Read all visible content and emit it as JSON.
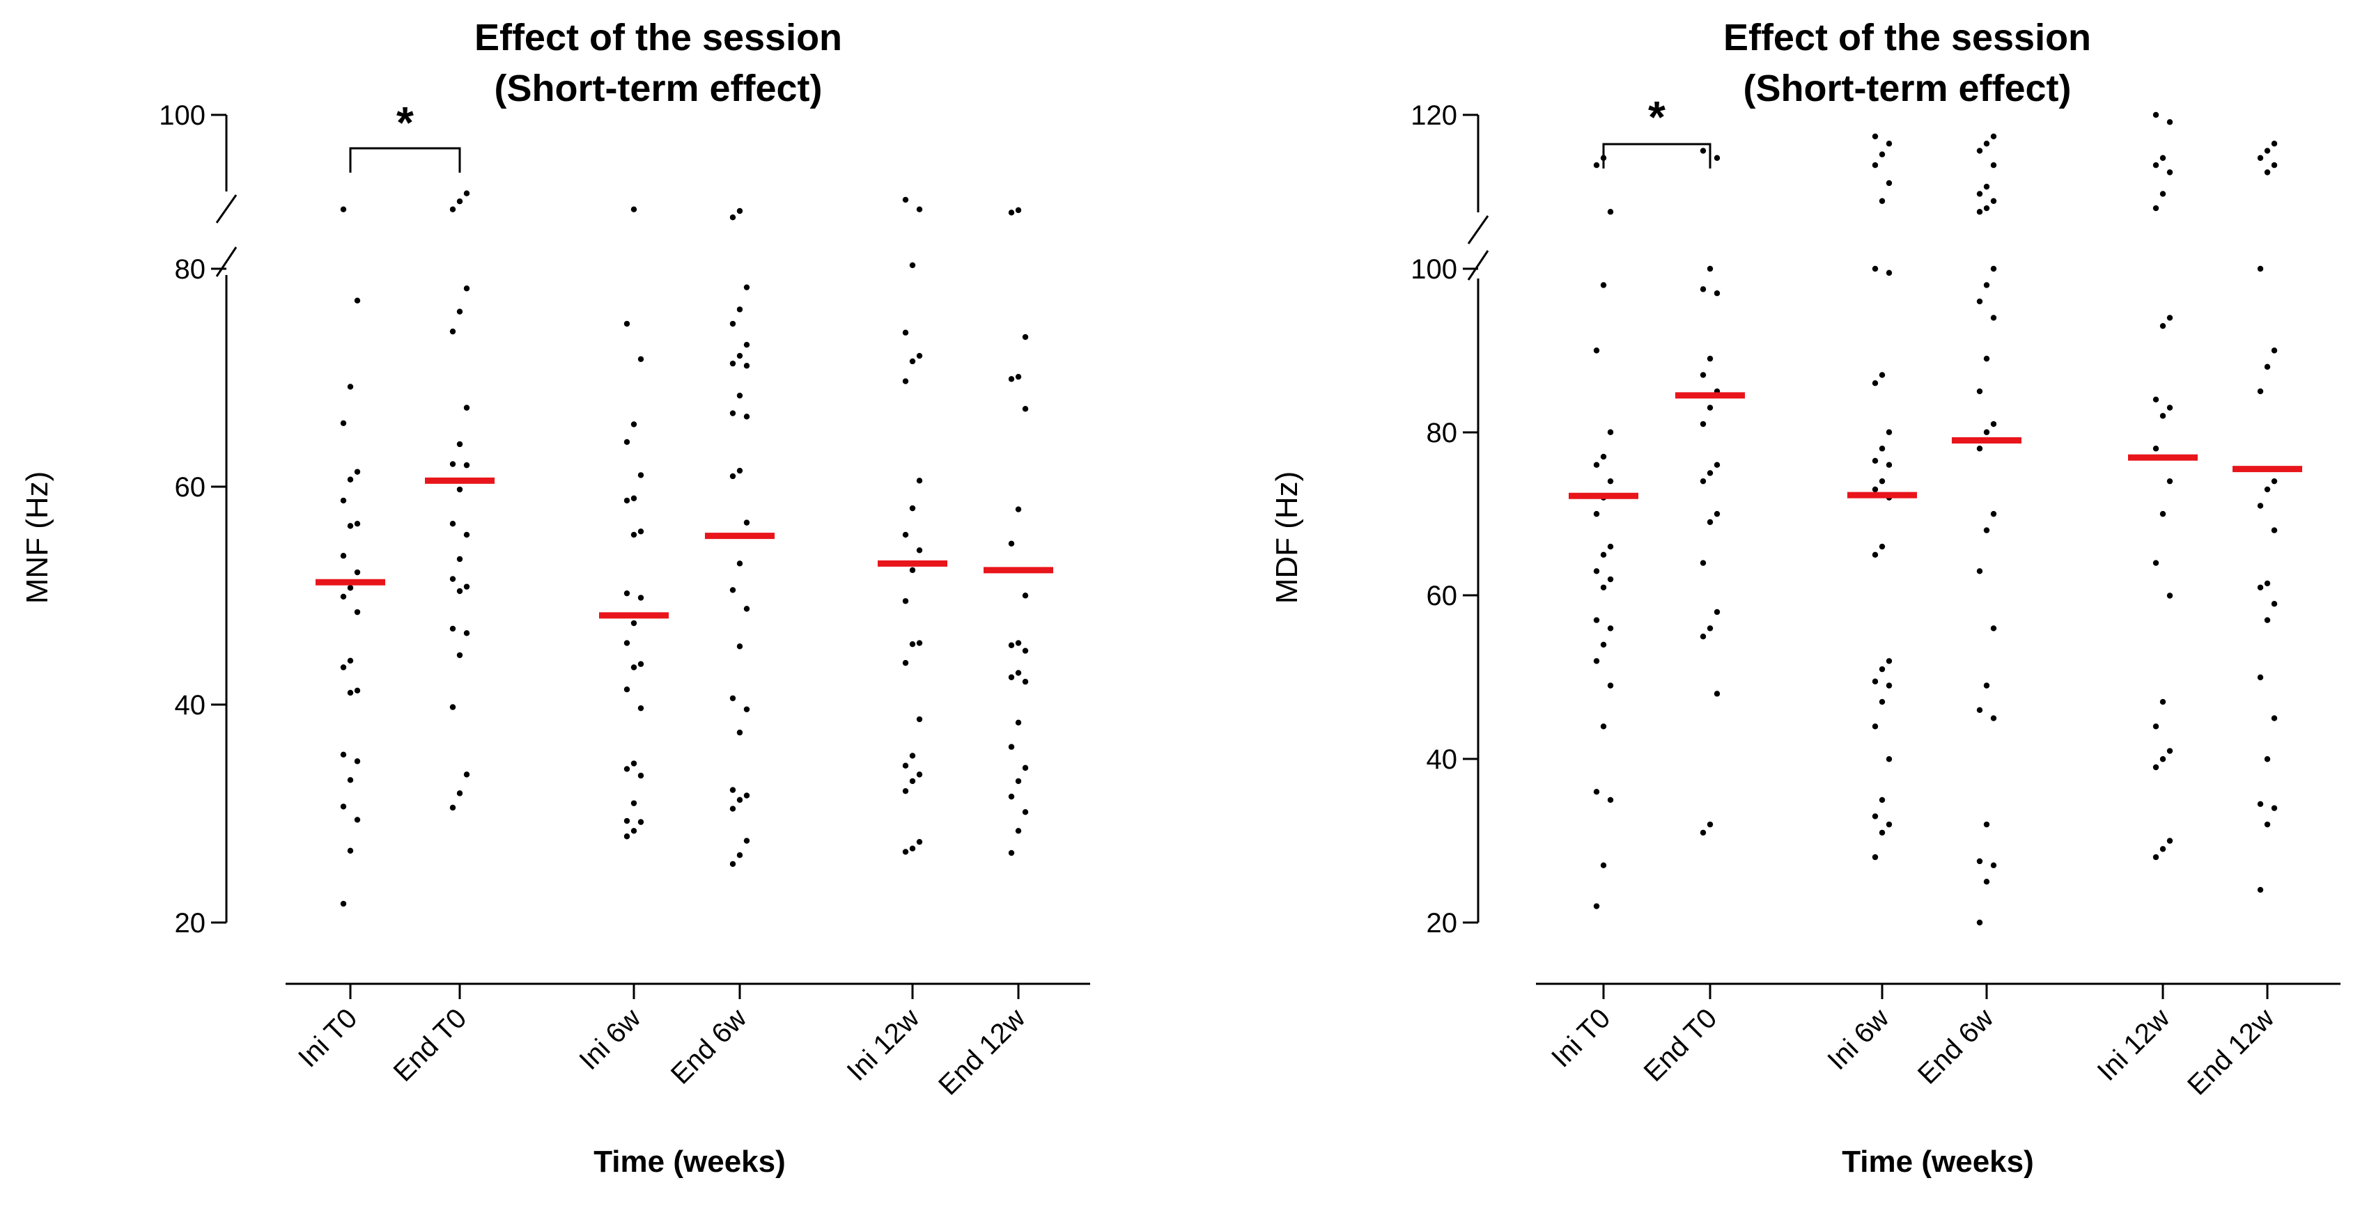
{
  "chart_data": [
    {
      "type": "scatter",
      "title": [
        "Effect of the session",
        "(Short-term effect)"
      ],
      "xlabel": "Time (weeks)",
      "ylabel": "MNF (Hz)",
      "categories": [
        "Ini T0",
        "End T0",
        "Ini 6w",
        "End 6w",
        "Ini 12w",
        "End 12w"
      ],
      "yticks": [
        "20",
        "40",
        "60",
        "80",
        "100"
      ],
      "ylim": [
        20,
        100
      ],
      "axis_break": [
        80,
        90
      ],
      "significance": {
        "from": "Ini T0",
        "to": "End T0",
        "label": "*"
      },
      "medians": [
        50.8,
        60.0,
        47.8,
        55.0,
        52.5,
        51.9
      ],
      "median_color": "#e8151b",
      "points": [
        [
          21.7,
          26.5,
          29.3,
          30.5,
          32.9,
          34.6,
          35.2,
          40.8,
          41.0,
          43.1,
          43.7,
          48.1,
          49.5,
          50.3,
          51.7,
          53.2,
          55.9,
          56.1,
          58.2,
          60.1,
          60.8,
          65.2,
          68.5,
          76.3,
          88.2
        ],
        [
          30.4,
          31.7,
          33.4,
          39.5,
          44.2,
          46.2,
          46.6,
          50.0,
          50.4,
          51.1,
          52.9,
          55.1,
          56.1,
          59.2,
          61.4,
          61.5,
          63.3,
          66.6,
          73.5,
          75.3,
          77.4,
          88.2,
          89.2,
          90.2
        ],
        [
          27.8,
          28.3,
          29.1,
          29.2,
          30.8,
          33.3,
          33.9,
          34.4,
          39.4,
          41.1,
          43.1,
          43.4,
          45.3,
          47.1,
          49.4,
          49.8,
          55.1,
          55.4,
          58.2,
          58.4,
          60.5,
          63.5,
          65.1,
          71.0,
          74.2,
          88.2
        ],
        [
          25.3,
          26.1,
          27.4,
          30.3,
          31.1,
          31.5,
          32.0,
          37.2,
          39.3,
          40.3,
          45.0,
          48.4,
          50.1,
          52.5,
          56.2,
          60.4,
          60.9,
          65.8,
          66.1,
          67.7,
          70.4,
          70.6,
          71.3,
          72.3,
          74.2,
          75.5,
          77.5,
          87.2,
          88.0
        ],
        [
          26.4,
          26.7,
          27.3,
          31.9,
          32.8,
          33.4,
          34.2,
          35.1,
          38.4,
          43.5,
          45.2,
          45.3,
          49.1,
          51.9,
          53.7,
          55.1,
          57.5,
          60.0,
          69.0,
          70.8,
          71.3,
          73.4,
          79.5,
          88.2,
          89.4
        ],
        [
          26.3,
          28.3,
          30.0,
          31.4,
          32.8,
          34.0,
          35.9,
          38.1,
          41.8,
          42.2,
          42.6,
          44.6,
          45.1,
          45.3,
          49.6,
          54.3,
          57.4,
          66.5,
          69.2,
          69.4,
          73.0,
          87.8,
          88.1
        ]
      ]
    },
    {
      "type": "scatter",
      "title": [
        "Effect of the session",
        "(Short-term effect)"
      ],
      "xlabel": "Time (weeks)",
      "ylabel": "MDF (Hz)",
      "categories": [
        "Ini T0",
        "End T0",
        "Ini 6w",
        "End 6w",
        "Ini 12w",
        "End 12w"
      ],
      "yticks": [
        "20",
        "40",
        "60",
        "80",
        "100",
        "120"
      ],
      "ylim": [
        20,
        120
      ],
      "axis_break": [
        100,
        105
      ],
      "significance": {
        "from": "Ini T0",
        "to": "End T0",
        "label": "*"
      },
      "medians": [
        72.2,
        84.5,
        72.3,
        79.0,
        76.9,
        75.5
      ],
      "median_color": "#e8151b",
      "points": [
        [
          22.0,
          27.0,
          35.0,
          36.0,
          44.0,
          49.0,
          52.0,
          54.0,
          56.0,
          57.0,
          61.0,
          62.0,
          63.0,
          65.0,
          66.0,
          70.0,
          72.0,
          74.0,
          76.0,
          77.0,
          80.0,
          90.0,
          98.0,
          106.5,
          113.0,
          114.0
        ],
        [
          31.0,
          32.0,
          48.0,
          55.0,
          56.0,
          58.0,
          64.0,
          69.0,
          70.0,
          74.0,
          75.0,
          76.0,
          81.0,
          83.0,
          85.0,
          87.0,
          89.0,
          97.0,
          97.5,
          100.0,
          114.0,
          115.0
        ],
        [
          28.0,
          31.0,
          32.0,
          33.0,
          35.0,
          40.0,
          44.0,
          47.0,
          49.0,
          49.5,
          51.0,
          52.0,
          65.0,
          66.0,
          72.0,
          73.0,
          74.0,
          76.0,
          76.5,
          78.0,
          80.0,
          86.0,
          87.0,
          99.5,
          100.0,
          108.0,
          110.5,
          113.0,
          114.5,
          116.0,
          117.0
        ],
        [
          20.0,
          25.0,
          27.0,
          27.5,
          32.0,
          45.0,
          46.0,
          49.0,
          56.0,
          63.0,
          68.0,
          70.0,
          78.0,
          80.0,
          81.0,
          85.0,
          89.0,
          94.0,
          96.0,
          98.0,
          100.0,
          106.5,
          107.0,
          108.0,
          109.0,
          110.0,
          113.0,
          115.0,
          116.0,
          117.0
        ],
        [
          28.0,
          29.0,
          30.0,
          39.0,
          40.0,
          41.0,
          44.0,
          47.0,
          60.0,
          64.0,
          70.0,
          74.0,
          78.0,
          82.0,
          83.0,
          84.0,
          93.0,
          94.0,
          107.0,
          109.0,
          112.0,
          113.0,
          114.0,
          119.0,
          120.0
        ],
        [
          24.0,
          32.0,
          34.0,
          34.5,
          40.0,
          45.0,
          50.0,
          57.0,
          59.0,
          61.0,
          61.5,
          68.0,
          71.0,
          73.0,
          74.0,
          85.0,
          88.0,
          90.0,
          100.0,
          112.0,
          113.0,
          114.0,
          115.0,
          116.0
        ]
      ]
    }
  ]
}
